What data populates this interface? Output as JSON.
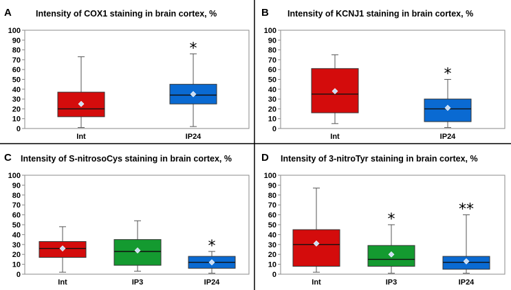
{
  "colors": {
    "Int": "#d40c0c",
    "IP3": "#149a30",
    "IP24": "#0a6ad2",
    "mean": "#c9ddf5"
  },
  "chart_data": [
    {
      "type": "box",
      "panel": "A",
      "title": "Intensity of COX1 staining in brain cortex, %",
      "ylim": [
        0,
        100
      ],
      "yticks": [
        "0",
        "10",
        "20",
        "30",
        "40",
        "50",
        "60",
        "70",
        "80",
        "90",
        "100"
      ],
      "categories": [
        "Int",
        "IP24"
      ],
      "boxes": [
        {
          "group": "Int",
          "min": 1,
          "q1": 12,
          "median": 20,
          "q3": 37,
          "max": 73,
          "mean": 25,
          "sig": ""
        },
        {
          "group": "IP24",
          "min": 2,
          "q1": 25,
          "median": 34,
          "q3": 45,
          "max": 76,
          "mean": 35,
          "sig": "*"
        }
      ]
    },
    {
      "type": "box",
      "panel": "B",
      "title": "Intensity of KCNJ1 staining in brain cortex, %",
      "ylim": [
        0,
        100
      ],
      "yticks": [
        "0",
        "10",
        "20",
        "30",
        "40",
        "50",
        "60",
        "70",
        "80",
        "90",
        "100"
      ],
      "categories": [
        "Int",
        "IP24"
      ],
      "boxes": [
        {
          "group": "Int",
          "min": 5,
          "q1": 16,
          "median": 35,
          "q3": 61,
          "max": 75,
          "mean": 38,
          "sig": ""
        },
        {
          "group": "IP24",
          "min": 1,
          "q1": 7,
          "median": 20,
          "q3": 30,
          "max": 50,
          "mean": 21,
          "sig": "*"
        }
      ]
    },
    {
      "type": "box",
      "panel": "C",
      "title": "Intensity of S-nitrosoCys staining in brain cortex, %",
      "ylim": [
        0,
        100
      ],
      "yticks": [
        "0",
        "10",
        "20",
        "30",
        "40",
        "50",
        "60",
        "70",
        "80",
        "90",
        "100"
      ],
      "categories": [
        "Int",
        "IP3",
        "IP24"
      ],
      "boxes": [
        {
          "group": "Int",
          "min": 2,
          "q1": 17,
          "median": 26,
          "q3": 33,
          "max": 48,
          "mean": 26,
          "sig": ""
        },
        {
          "group": "IP3",
          "min": 3,
          "q1": 9,
          "median": 23,
          "q3": 35,
          "max": 54,
          "mean": 24,
          "sig": ""
        },
        {
          "group": "IP24",
          "min": 1,
          "q1": 6,
          "median": 12,
          "q3": 18,
          "max": 23,
          "mean": 12,
          "sig": "*"
        }
      ]
    },
    {
      "type": "box",
      "panel": "D",
      "title": "Intensity of 3-nitroTyr staining in brain cortex, %",
      "ylim": [
        0,
        100
      ],
      "yticks": [
        "0",
        "10",
        "20",
        "30",
        "40",
        "50",
        "60",
        "70",
        "80",
        "90",
        "100"
      ],
      "categories": [
        "Int",
        "IP3",
        "IP24"
      ],
      "boxes": [
        {
          "group": "Int",
          "min": 2,
          "q1": 8,
          "median": 30,
          "q3": 45,
          "max": 87,
          "mean": 31,
          "sig": ""
        },
        {
          "group": "IP3",
          "min": 1,
          "q1": 8,
          "median": 15,
          "q3": 29,
          "max": 50,
          "mean": 20,
          "sig": "*"
        },
        {
          "group": "IP24",
          "min": 1,
          "q1": 5,
          "median": 12,
          "q3": 18,
          "max": 60,
          "mean": 13,
          "sig": "**"
        }
      ]
    }
  ]
}
